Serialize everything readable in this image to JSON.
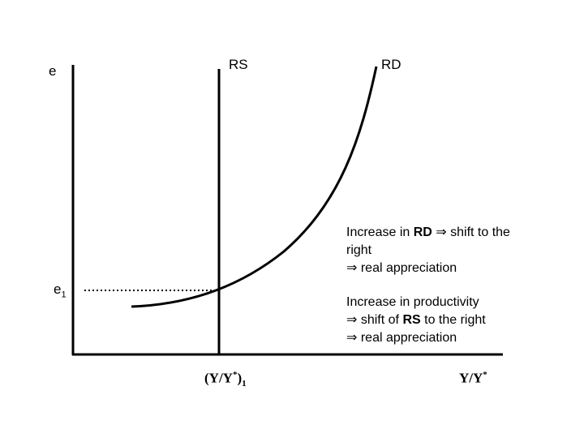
{
  "axes": {
    "y_label": "e",
    "x_label": "Y/Y",
    "x_label_star": "*"
  },
  "curves": {
    "rs_label": "RS",
    "rd_label": "RD"
  },
  "equilibrium": {
    "e_label": "e",
    "e_subscript": "1",
    "x_label": "(Y/Y",
    "x_label_star": "*",
    "x_label_close": ")",
    "x_subscript": "1"
  },
  "notes": {
    "rd": {
      "line1_prefix": "Increase in ",
      "line1_bold": "RD",
      "arrow": "⇒",
      "line1_suffix": " shift to the",
      "line2": "right",
      "line3": " real appreciation"
    },
    "rs": {
      "line1": "Increase in productivity",
      "line2_prefix": " shift of ",
      "line2_bold": "RS",
      "line2_suffix": " to the right",
      "line3": " real appreciation",
      "arrow": "⇒"
    }
  },
  "colors": {
    "ink": "#000000"
  }
}
